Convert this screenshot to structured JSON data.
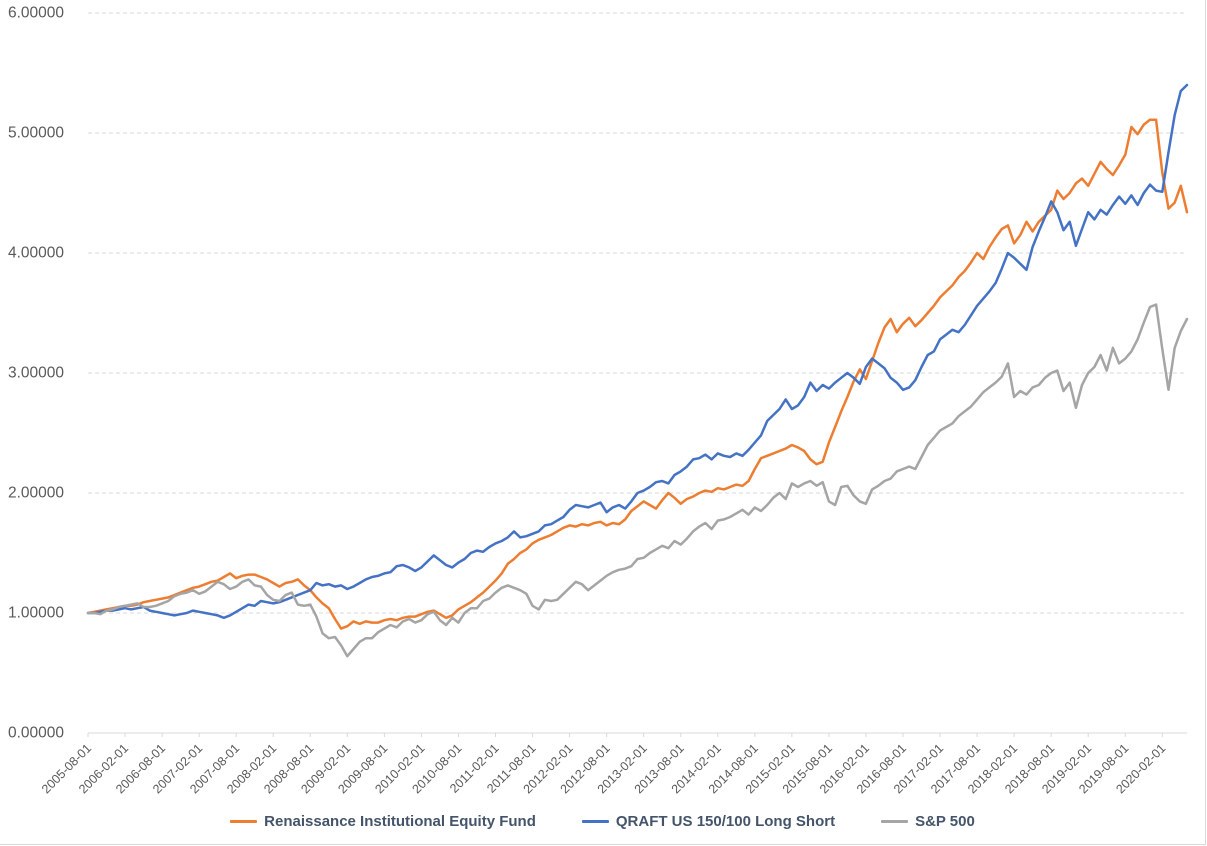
{
  "chart_data": {
    "type": "line",
    "title": "",
    "xlabel": "",
    "ylabel": "",
    "ylim": [
      0,
      6
    ],
    "grid": "horizontal-dashed",
    "legend_position": "bottom-center",
    "x_frequency": "monthly",
    "x_start": "2005-08-01",
    "x_end": "2020-06-01",
    "y_tick_labels": [
      "0.00000",
      "1.00000",
      "2.00000",
      "3.00000",
      "4.00000",
      "5.00000",
      "6.00000"
    ],
    "x_labels": [
      "2005-08-01",
      "2006-02-01",
      "2006-08-01",
      "2007-02-01",
      "2007-08-01",
      "2008-02-01",
      "2008-08-01",
      "2009-02-01",
      "2009-08-01",
      "2010-02-01",
      "2010-08-01",
      "2011-02-01",
      "2011-08-01",
      "2012-02-01",
      "2012-08-01",
      "2013-02-01",
      "2013-08-01",
      "2014-02-01",
      "2014-08-01",
      "2015-02-01",
      "2015-08-01",
      "2016-02-01",
      "2016-08-01",
      "2017-02-01",
      "2017-08-01",
      "2018-02-01",
      "2018-08-01",
      "2019-02-01",
      "2019-08-01",
      "2020-02-01"
    ],
    "x_label_every_n_points": 6,
    "colors": {
      "orange": "#ED7D31",
      "blue": "#4472C4",
      "gray": "#A5A5A5",
      "grid": "#D9D9D9",
      "axis": "#D9D9D9",
      "axis_text": "#595959",
      "legend_text": "#44546A"
    },
    "series": [
      {
        "name": "Renaissance Institutional Equity Fund",
        "color": "#ED7D31",
        "values": [
          1.0,
          1.01,
          1.02,
          1.03,
          1.04,
          1.05,
          1.06,
          1.06,
          1.07,
          1.09,
          1.1,
          1.11,
          1.12,
          1.13,
          1.15,
          1.17,
          1.19,
          1.21,
          1.22,
          1.24,
          1.26,
          1.27,
          1.3,
          1.33,
          1.29,
          1.31,
          1.32,
          1.32,
          1.3,
          1.28,
          1.25,
          1.22,
          1.25,
          1.26,
          1.28,
          1.23,
          1.19,
          1.13,
          1.08,
          1.04,
          0.95,
          0.87,
          0.89,
          0.93,
          0.91,
          0.93,
          0.92,
          0.92,
          0.94,
          0.95,
          0.94,
          0.96,
          0.97,
          0.97,
          0.99,
          1.01,
          1.02,
          0.99,
          0.96,
          0.98,
          1.03,
          1.06,
          1.09,
          1.13,
          1.17,
          1.22,
          1.27,
          1.33,
          1.41,
          1.45,
          1.5,
          1.53,
          1.58,
          1.61,
          1.63,
          1.65,
          1.68,
          1.71,
          1.73,
          1.72,
          1.74,
          1.73,
          1.75,
          1.76,
          1.73,
          1.75,
          1.74,
          1.78,
          1.85,
          1.89,
          1.93,
          1.9,
          1.87,
          1.94,
          2.0,
          1.96,
          1.91,
          1.95,
          1.97,
          2.0,
          2.02,
          2.01,
          2.04,
          2.03,
          2.05,
          2.07,
          2.06,
          2.1,
          2.2,
          2.29,
          2.31,
          2.33,
          2.35,
          2.37,
          2.4,
          2.38,
          2.35,
          2.28,
          2.24,
          2.26,
          2.42,
          2.55,
          2.68,
          2.8,
          2.93,
          3.03,
          2.95,
          3.1,
          3.25,
          3.38,
          3.45,
          3.34,
          3.41,
          3.46,
          3.39,
          3.44,
          3.5,
          3.56,
          3.63,
          3.68,
          3.73,
          3.8,
          3.85,
          3.92,
          4.0,
          3.95,
          4.05,
          4.13,
          4.2,
          4.23,
          4.08,
          4.15,
          4.26,
          4.18,
          4.26,
          4.31,
          4.36,
          4.52,
          4.45,
          4.5,
          4.58,
          4.62,
          4.56,
          4.66,
          4.76,
          4.7,
          4.65,
          4.73,
          4.82,
          5.05,
          4.99,
          5.07,
          5.11,
          5.11,
          4.67,
          4.37,
          4.42,
          4.56,
          4.34
        ]
      },
      {
        "name": "QRAFT US 150/100 Long Short",
        "color": "#4472C4",
        "values": [
          1.0,
          1.0,
          1.01,
          1.02,
          1.02,
          1.03,
          1.04,
          1.03,
          1.04,
          1.05,
          1.02,
          1.01,
          1.0,
          0.99,
          0.98,
          0.99,
          1.0,
          1.02,
          1.01,
          1.0,
          0.99,
          0.98,
          0.96,
          0.98,
          1.01,
          1.04,
          1.07,
          1.06,
          1.1,
          1.09,
          1.08,
          1.09,
          1.11,
          1.13,
          1.15,
          1.17,
          1.19,
          1.25,
          1.23,
          1.24,
          1.22,
          1.23,
          1.2,
          1.22,
          1.25,
          1.28,
          1.3,
          1.31,
          1.33,
          1.34,
          1.39,
          1.4,
          1.38,
          1.35,
          1.38,
          1.43,
          1.48,
          1.44,
          1.4,
          1.38,
          1.42,
          1.45,
          1.5,
          1.52,
          1.51,
          1.55,
          1.58,
          1.6,
          1.63,
          1.68,
          1.63,
          1.64,
          1.66,
          1.68,
          1.73,
          1.74,
          1.77,
          1.8,
          1.86,
          1.9,
          1.89,
          1.88,
          1.9,
          1.92,
          1.84,
          1.88,
          1.9,
          1.87,
          1.93,
          2.0,
          2.02,
          2.05,
          2.09,
          2.1,
          2.08,
          2.15,
          2.18,
          2.22,
          2.28,
          2.29,
          2.32,
          2.28,
          2.33,
          2.31,
          2.3,
          2.33,
          2.31,
          2.36,
          2.42,
          2.48,
          2.6,
          2.65,
          2.7,
          2.78,
          2.7,
          2.73,
          2.8,
          2.92,
          2.85,
          2.9,
          2.87,
          2.92,
          2.96,
          3.0,
          2.96,
          2.91,
          3.05,
          3.12,
          3.08,
          3.04,
          2.96,
          2.92,
          2.86,
          2.88,
          2.94,
          3.05,
          3.15,
          3.18,
          3.28,
          3.32,
          3.36,
          3.34,
          3.4,
          3.48,
          3.56,
          3.62,
          3.68,
          3.75,
          3.87,
          4.0,
          3.96,
          3.91,
          3.86,
          4.05,
          4.18,
          4.3,
          4.43,
          4.34,
          4.19,
          4.26,
          4.06,
          4.2,
          4.34,
          4.28,
          4.36,
          4.32,
          4.4,
          4.47,
          4.41,
          4.48,
          4.4,
          4.5,
          4.57,
          4.52,
          4.51,
          4.84,
          5.15,
          5.35,
          5.4
        ]
      },
      {
        "name": "S&P 500",
        "color": "#A5A5A5",
        "values": [
          1.0,
          1.0,
          0.99,
          1.02,
          1.03,
          1.05,
          1.06,
          1.07,
          1.08,
          1.05,
          1.05,
          1.06,
          1.08,
          1.1,
          1.14,
          1.16,
          1.17,
          1.19,
          1.16,
          1.18,
          1.22,
          1.26,
          1.24,
          1.2,
          1.22,
          1.26,
          1.28,
          1.23,
          1.22,
          1.15,
          1.11,
          1.1,
          1.15,
          1.17,
          1.07,
          1.06,
          1.07,
          0.97,
          0.83,
          0.79,
          0.8,
          0.73,
          0.64,
          0.7,
          0.76,
          0.79,
          0.79,
          0.84,
          0.87,
          0.9,
          0.88,
          0.93,
          0.95,
          0.92,
          0.94,
          0.99,
          1.01,
          0.94,
          0.9,
          0.96,
          0.92,
          1.0,
          1.04,
          1.04,
          1.1,
          1.12,
          1.17,
          1.21,
          1.23,
          1.21,
          1.19,
          1.16,
          1.06,
          1.03,
          1.11,
          1.1,
          1.11,
          1.16,
          1.21,
          1.26,
          1.24,
          1.19,
          1.23,
          1.27,
          1.31,
          1.34,
          1.36,
          1.37,
          1.39,
          1.45,
          1.46,
          1.5,
          1.53,
          1.56,
          1.54,
          1.6,
          1.57,
          1.62,
          1.68,
          1.72,
          1.75,
          1.7,
          1.77,
          1.78,
          1.8,
          1.83,
          1.86,
          1.82,
          1.88,
          1.85,
          1.9,
          1.96,
          2.0,
          1.95,
          2.08,
          2.05,
          2.08,
          2.1,
          2.06,
          2.09,
          1.93,
          1.9,
          2.05,
          2.06,
          1.98,
          1.93,
          1.91,
          2.03,
          2.06,
          2.1,
          2.12,
          2.18,
          2.2,
          2.22,
          2.2,
          2.3,
          2.4,
          2.46,
          2.52,
          2.55,
          2.58,
          2.64,
          2.68,
          2.72,
          2.78,
          2.84,
          2.88,
          2.92,
          2.97,
          3.08,
          2.8,
          2.85,
          2.82,
          2.88,
          2.9,
          2.96,
          3.0,
          3.02,
          2.85,
          2.92,
          2.71,
          2.9,
          3.0,
          3.05,
          3.15,
          3.02,
          3.21,
          3.08,
          3.12,
          3.18,
          3.28,
          3.42,
          3.55,
          3.57,
          3.2,
          2.86,
          3.21,
          3.35,
          3.45
        ]
      }
    ]
  }
}
